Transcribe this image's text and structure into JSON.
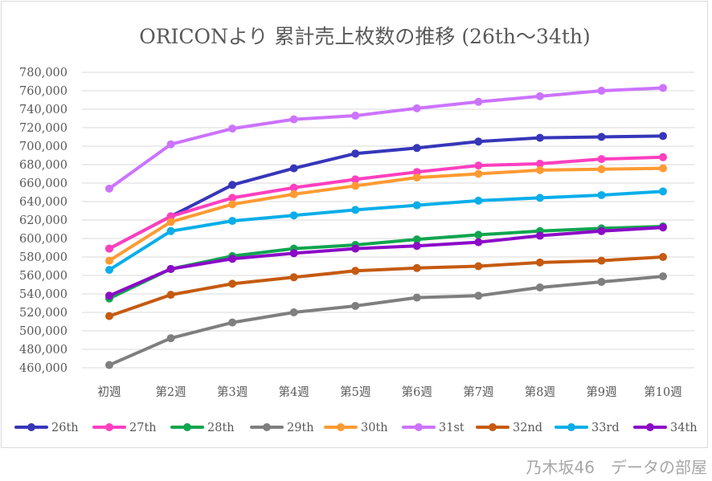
{
  "chart_data": {
    "type": "line",
    "title": "ORICONより 累計売上枚数の推移 (26th～34th)",
    "xlabel": "",
    "ylabel": "",
    "categories": [
      "初週",
      "第2週",
      "第3週",
      "第4週",
      "第5週",
      "第6週",
      "第7週",
      "第8週",
      "第9週",
      "第10週"
    ],
    "ylim": [
      460000,
      780000
    ],
    "ytick_step": 20000,
    "ytick_labels": [
      "460,000",
      "480,000",
      "500,000",
      "520,000",
      "540,000",
      "560,000",
      "580,000",
      "600,000",
      "620,000",
      "640,000",
      "660,000",
      "680,000",
      "700,000",
      "720,000",
      "740,000",
      "760,000",
      "780,000"
    ],
    "grid": true,
    "legend_position": "bottom",
    "series": [
      {
        "name": "26th",
        "color": "#3636b9",
        "values": [
          589000,
          624000,
          658000,
          676000,
          692000,
          698000,
          705000,
          709000,
          710000,
          711000
        ]
      },
      {
        "name": "27th",
        "color": "#ff3fbf",
        "values": [
          589000,
          624000,
          644000,
          655000,
          664000,
          672000,
          679000,
          681000,
          686000,
          688000
        ]
      },
      {
        "name": "28th",
        "color": "#10a54f",
        "values": [
          535000,
          567000,
          581000,
          589000,
          593000,
          599000,
          604000,
          608000,
          611000,
          613000
        ]
      },
      {
        "name": "29th",
        "color": "#7f7f7f",
        "values": [
          463000,
          492000,
          509000,
          520000,
          527000,
          536000,
          538000,
          547000,
          553000,
          559000
        ]
      },
      {
        "name": "30th",
        "color": "#ff9a33",
        "values": [
          576000,
          618000,
          637000,
          648000,
          657000,
          666000,
          670000,
          674000,
          675000,
          676000
        ]
      },
      {
        "name": "31st",
        "color": "#cc73ff",
        "values": [
          654000,
          702000,
          719000,
          729000,
          733000,
          741000,
          748000,
          754000,
          760000,
          763000
        ]
      },
      {
        "name": "32nd",
        "color": "#c55a11",
        "values": [
          516000,
          539000,
          551000,
          558000,
          565000,
          568000,
          570000,
          574000,
          576000,
          580000
        ]
      },
      {
        "name": "33rd",
        "color": "#0aaee9",
        "values": [
          566000,
          608000,
          619000,
          625000,
          631000,
          636000,
          641000,
          644000,
          647000,
          651000
        ]
      },
      {
        "name": "34th",
        "color": "#8c0ac7",
        "values": [
          538000,
          567000,
          578000,
          584000,
          589000,
          592000,
          596000,
          603000,
          608000,
          612000
        ]
      }
    ]
  },
  "watermark": "乃木坂46　データの部屋"
}
